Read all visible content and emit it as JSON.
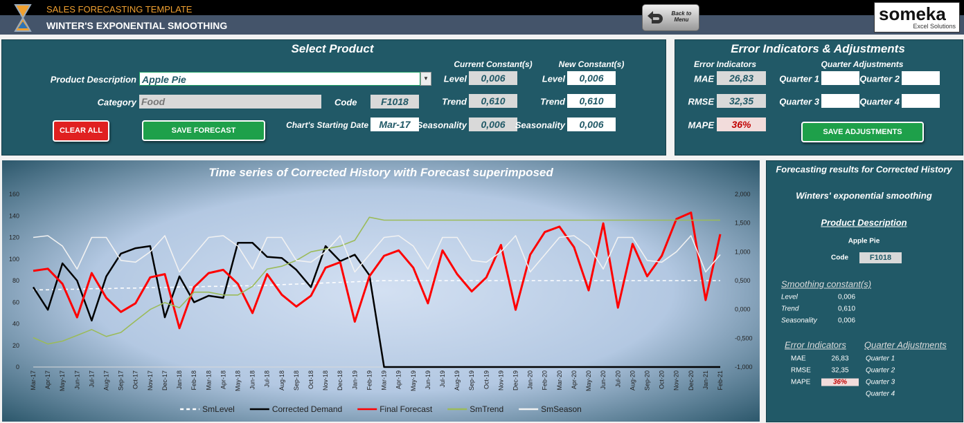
{
  "header": {
    "subtitle": "SALES FORECASTING TEMPLATE",
    "title": "WINTER'S EXPONENTIAL SMOOTHING",
    "back_button": "Back to Menu",
    "logo": "someka",
    "logo_sub": "Excel Solutions"
  },
  "select_product": {
    "title": "Select Product",
    "product_label": "Product Description",
    "product": "Apple Pie",
    "category_label": "Category",
    "category": "Food",
    "code_label": "Code",
    "code": "F1018",
    "start_label": "Chart's Starting Date",
    "start": "Mar-17",
    "clear_button": "CLEAR ALL",
    "save_button": "SAVE FORECAST",
    "current_header": "Current Constant(s)",
    "new_header": "New Constant(s)",
    "current": [
      {
        "label": "Level",
        "value": "0,006"
      },
      {
        "label": "Trend",
        "value": "0,610"
      },
      {
        "label": "Seasonality",
        "value": "0,006"
      }
    ],
    "new": [
      {
        "label": "Level",
        "value": "0,006"
      },
      {
        "label": "Trend",
        "value": "0,610"
      },
      {
        "label": "Seasonality",
        "value": "0,006"
      }
    ]
  },
  "error_panel": {
    "title": "Error Indicators & Adjustments",
    "indicators_header": "Error Indicators",
    "adjustments_header": "Quarter Adjustments",
    "indicators": [
      {
        "label": "MAE",
        "value": "26,83"
      },
      {
        "label": "RMSE",
        "value": "32,35"
      },
      {
        "label": "MAPE",
        "value": "36%"
      }
    ],
    "quarters": [
      "Quarter 1",
      "Quarter 2",
      "Quarter 3",
      "Quarter 4"
    ],
    "save_button": "SAVE ADJUSTMENTS"
  },
  "results": {
    "title": "Forecasting results for Corrected History",
    "method": "Winters' exponential smoothing",
    "product_header": "Product Description",
    "product": "Apple Pie",
    "code_label": "Code",
    "code": "F1018",
    "constants_header": "Smoothing constant(s)",
    "constants": [
      {
        "label": "Level",
        "value": "0,006"
      },
      {
        "label": "Trend",
        "value": "0,610"
      },
      {
        "label": "Seasonality",
        "value": "0,006"
      }
    ],
    "indicators_header": "Error Indicators",
    "adjustments_header": "Quarter Adjustments",
    "indicators": [
      {
        "label": "MAE",
        "value": "26,83"
      },
      {
        "label": "RMSE",
        "value": "32,35"
      },
      {
        "label": "MAPE",
        "value": "36%"
      }
    ],
    "quarters": [
      "Quarter 1",
      "Quarter 2",
      "Quarter 3",
      "Quarter 4"
    ]
  },
  "chart_data": {
    "type": "line",
    "title": "Time series of Corrected History with Forecast superimposed",
    "categories": [
      "Mar-17",
      "Apr-17",
      "May-17",
      "Jun-17",
      "Jul-17",
      "Aug-17",
      "Sep-17",
      "Oct-17",
      "Nov-17",
      "Dec-17",
      "Jan-18",
      "Feb-18",
      "Mar-18",
      "Apr-18",
      "May-18",
      "Jun-18",
      "Jul-18",
      "Aug-18",
      "Sep-18",
      "Oct-18",
      "Nov-18",
      "Dec-18",
      "Jan-19",
      "Feb-19",
      "Mar-19",
      "Apr-19",
      "May-19",
      "Jun-19",
      "Jul-19",
      "Aug-19",
      "Sep-19",
      "Oct-19",
      "Nov-19",
      "Dec-19",
      "Jan-20",
      "Feb-20",
      "Mar-20",
      "Apr-20",
      "May-20",
      "Jun-20",
      "Jul-20",
      "Aug-20",
      "Sep-20",
      "Oct-20",
      "Nov-20",
      "Dec-20",
      "Jan-21",
      "Feb-21"
    ],
    "ylim": [
      0,
      160
    ],
    "yticks": [
      0,
      20,
      40,
      60,
      80,
      100,
      120,
      140,
      160
    ],
    "y2lim": [
      -1,
      2
    ],
    "y2ticks": [
      {
        "value": -1,
        "label": "-1,000"
      },
      {
        "value": -0.5,
        "label": "-0,500"
      },
      {
        "value": 0,
        "label": "0,000"
      },
      {
        "value": 0.5,
        "label": "0,500"
      },
      {
        "value": 1,
        "label": "1,000"
      },
      {
        "value": 1.5,
        "label": "1,500"
      },
      {
        "value": 2,
        "label": "2,000"
      }
    ],
    "grid": false,
    "legend": "bottom",
    "series": [
      {
        "name": "SmLevel",
        "color": "#ffffff",
        "axis": "y2",
        "dashed": true,
        "values": [
          0.34,
          0.34,
          0.35,
          0.35,
          0.36,
          0.36,
          0.37,
          0.37,
          0.38,
          0.38,
          0.39,
          0.39,
          0.4,
          0.4,
          0.41,
          0.41,
          0.42,
          0.43,
          0.44,
          0.45,
          0.46,
          0.47,
          0.48,
          0.49,
          0.5,
          0.5,
          0.5,
          0.5,
          0.5,
          0.5,
          0.5,
          0.5,
          0.5,
          0.5,
          0.5,
          0.5,
          0.5,
          0.5,
          0.5,
          0.5,
          0.5,
          0.5,
          0.5,
          0.5,
          0.5,
          0.5,
          0.5,
          0.5
        ]
      },
      {
        "name": "Corrected Demand",
        "color": "#000000",
        "values": [
          74,
          53,
          96,
          80,
          43,
          84,
          105,
          110,
          112,
          46,
          84,
          60,
          66,
          64,
          115,
          115,
          102,
          101,
          90,
          74,
          112,
          98,
          104,
          85,
          0,
          0,
          0,
          0,
          0,
          0,
          0,
          0,
          0,
          0,
          0,
          0,
          0,
          0,
          0,
          0,
          0,
          0,
          0,
          0,
          0,
          0,
          0,
          0
        ]
      },
      {
        "name": "Final Forecast",
        "color": "#ff0000",
        "values": [
          89,
          91,
          77,
          46,
          87,
          64,
          51,
          59,
          83,
          86,
          36,
          74,
          87,
          90,
          77,
          50,
          86,
          67,
          56,
          66,
          92,
          97,
          42,
          84,
          103,
          108,
          92,
          59,
          108,
          86,
          70,
          83,
          113,
          53,
          104,
          125,
          130,
          111,
          71,
          133,
          55,
          114,
          84,
          103,
          137,
          143,
          62,
          123
        ]
      },
      {
        "name": "SmTrend",
        "color": "#9bbb59",
        "axis": "y2",
        "values": [
          -0.49,
          -0.6,
          -0.55,
          -0.45,
          -0.35,
          -0.47,
          -0.4,
          -0.2,
          0,
          0.12,
          0.03,
          0.3,
          0.3,
          0.25,
          0.25,
          0.4,
          0.7,
          0.75,
          0.85,
          1,
          1.05,
          1.1,
          1.2,
          1.6,
          1.55,
          1.55,
          1.55,
          1.55,
          1.55,
          1.55,
          1.55,
          1.55,
          1.55,
          1.55,
          1.55,
          1.55,
          1.55,
          1.55,
          1.55,
          1.55,
          1.55,
          1.55,
          1.55,
          1.55,
          1.55,
          1.55,
          1.55,
          1.55
        ]
      },
      {
        "name": "SmSeason",
        "color": "#f2f2f2",
        "axis": "y2",
        "values": [
          1.25,
          1.28,
          1.1,
          0.7,
          1.25,
          1.25,
          0.85,
          0.82,
          1.0,
          1.28,
          0.65,
          0.95,
          1.25,
          1.28,
          1.1,
          0.7,
          1.25,
          1.25,
          0.85,
          0.82,
          1.0,
          1.28,
          0.65,
          0.95,
          1.25,
          1.28,
          1.1,
          0.7,
          1.25,
          1.25,
          0.85,
          0.82,
          1.0,
          1.28,
          0.65,
          0.95,
          1.25,
          1.28,
          1.1,
          0.7,
          1.25,
          1.25,
          0.85,
          0.82,
          1.0,
          1.28,
          0.65,
          0.95
        ]
      }
    ]
  }
}
